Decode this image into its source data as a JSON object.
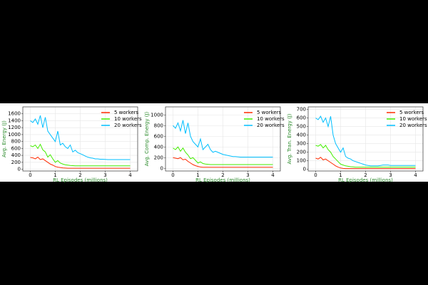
{
  "chart_data": [
    {
      "type": "line",
      "ylabel": "Avg. Energy (J)",
      "xlabel": "RL Episodes (millions)",
      "x": [
        0,
        0.1,
        0.2,
        0.3,
        0.4,
        0.5,
        0.6,
        0.7,
        0.8,
        0.9,
        1.0,
        1.1,
        1.2,
        1.3,
        1.4,
        1.5,
        1.6,
        1.7,
        1.8,
        1.9,
        2.0,
        2.1,
        2.2,
        2.3,
        2.4,
        2.5,
        2.6,
        2.7,
        2.8,
        2.9,
        3.0,
        3.1,
        3.2,
        3.3,
        3.4,
        3.5,
        3.6,
        3.7,
        3.8,
        3.9,
        4.0
      ],
      "series": [
        {
          "name": "5 workers",
          "color": "#ff2a00",
          "values": [
            340,
            330,
            300,
            350,
            280,
            300,
            250,
            200,
            150,
            120,
            80,
            60,
            50,
            40,
            35,
            30,
            30,
            30,
            30,
            30,
            30,
            30,
            30,
            30,
            30,
            30,
            30,
            30,
            30,
            30,
            30,
            30,
            30,
            30,
            30,
            30,
            30,
            30,
            30,
            30,
            30
          ]
        },
        {
          "name": "10 workers",
          "color": "#44ee00",
          "values": [
            680,
            650,
            700,
            600,
            720,
            560,
            500,
            350,
            420,
            300,
            200,
            250,
            180,
            150,
            130,
            120,
            110,
            105,
            100,
            100,
            100,
            100,
            100,
            100,
            100,
            100,
            100,
            100,
            100,
            100,
            100,
            100,
            100,
            100,
            100,
            100,
            100,
            100,
            100,
            100,
            100
          ]
        },
        {
          "name": "20 workers",
          "color": "#00bfff",
          "values": [
            1400,
            1350,
            1450,
            1300,
            1550,
            1200,
            1500,
            1100,
            1000,
            900,
            800,
            1100,
            700,
            750,
            650,
            600,
            700,
            500,
            550,
            480,
            450,
            420,
            380,
            350,
            330,
            320,
            300,
            300,
            290,
            290,
            285,
            280,
            280,
            280,
            280,
            278,
            278,
            280,
            278,
            280,
            280
          ]
        }
      ],
      "xlim": [
        -0.3,
        4.3
      ],
      "xticks": [
        0,
        1,
        2,
        3,
        4
      ],
      "ylim": [
        -50,
        1800
      ],
      "yticks": [
        0,
        200,
        400,
        600,
        800,
        1000,
        1200,
        1400,
        1600
      ],
      "grid": true
    },
    {
      "type": "line",
      "ylabel": "Avg. Comp. Energy (J)",
      "xlabel": "RL Episodes (millions)",
      "x": [
        0,
        0.1,
        0.2,
        0.3,
        0.4,
        0.5,
        0.6,
        0.7,
        0.8,
        0.9,
        1.0,
        1.1,
        1.2,
        1.3,
        1.4,
        1.5,
        1.6,
        1.7,
        1.8,
        1.9,
        2.0,
        2.1,
        2.2,
        2.3,
        2.4,
        2.5,
        2.6,
        2.7,
        2.8,
        2.9,
        3.0,
        3.1,
        3.2,
        3.3,
        3.4,
        3.5,
        3.6,
        3.7,
        3.8,
        3.9,
        4.0
      ],
      "series": [
        {
          "name": "5 workers",
          "color": "#ff2a00",
          "values": [
            200,
            190,
            180,
            200,
            160,
            170,
            130,
            100,
            70,
            50,
            35,
            25,
            20,
            20,
            20,
            20,
            20,
            20,
            20,
            20,
            20,
            20,
            20,
            20,
            20,
            20,
            20,
            20,
            20,
            20,
            20,
            20,
            20,
            20,
            20,
            20,
            20,
            20,
            20,
            20,
            20
          ]
        },
        {
          "name": "10 workers",
          "color": "#44ee00",
          "values": [
            380,
            350,
            400,
            320,
            380,
            300,
            250,
            180,
            200,
            150,
            100,
            120,
            90,
            80,
            75,
            70,
            70,
            70,
            70,
            70,
            70,
            70,
            70,
            70,
            70,
            70,
            70,
            70,
            70,
            70,
            70,
            70,
            70,
            70,
            70,
            70,
            70,
            70,
            70,
            70,
            70
          ]
        },
        {
          "name": "20 workers",
          "color": "#00bfff",
          "values": [
            800,
            750,
            850,
            700,
            900,
            650,
            850,
            600,
            500,
            450,
            400,
            550,
            350,
            400,
            450,
            350,
            300,
            320,
            300,
            280,
            260,
            250,
            240,
            230,
            220,
            220,
            215,
            210,
            210,
            210,
            210,
            210,
            210,
            210,
            210,
            210,
            210,
            210,
            210,
            210,
            210
          ]
        }
      ],
      "xlim": [
        -0.3,
        4.3
      ],
      "xticks": [
        0,
        1,
        2,
        3,
        4
      ],
      "ylim": [
        -50,
        1150
      ],
      "yticks": [
        0,
        200,
        400,
        600,
        800,
        1000
      ],
      "grid": true
    },
    {
      "type": "line",
      "ylabel": "Avg. Tran. Energy (J)",
      "xlabel": "RL Episodes (millions)",
      "x": [
        0,
        0.1,
        0.2,
        0.3,
        0.4,
        0.5,
        0.6,
        0.7,
        0.8,
        0.9,
        1.0,
        1.1,
        1.2,
        1.3,
        1.4,
        1.5,
        1.6,
        1.7,
        1.8,
        1.9,
        2.0,
        2.1,
        2.2,
        2.3,
        2.4,
        2.5,
        2.6,
        2.7,
        2.8,
        2.9,
        3.0,
        3.1,
        3.2,
        3.3,
        3.4,
        3.5,
        3.6,
        3.7,
        3.8,
        3.9,
        4.0
      ],
      "series": [
        {
          "name": "5 workers",
          "color": "#ff2a00",
          "values": [
            130,
            120,
            140,
            110,
            120,
            100,
            80,
            60,
            40,
            25,
            15,
            10,
            8,
            8,
            8,
            8,
            8,
            8,
            8,
            8,
            8,
            8,
            8,
            8,
            8,
            8,
            8,
            8,
            8,
            8,
            8,
            8,
            8,
            8,
            8,
            8,
            8,
            8,
            8,
            8,
            8
          ]
        },
        {
          "name": "10 workers",
          "color": "#44ee00",
          "values": [
            280,
            270,
            290,
            250,
            280,
            230,
            200,
            150,
            120,
            90,
            60,
            50,
            40,
            35,
            30,
            28,
            25,
            25,
            25,
            25,
            25,
            25,
            25,
            25,
            25,
            25,
            25,
            25,
            25,
            25,
            25,
            25,
            25,
            25,
            25,
            25,
            25,
            25,
            25,
            25,
            25
          ]
        },
        {
          "name": "20 workers",
          "color": "#00bfff",
          "values": [
            600,
            580,
            620,
            550,
            600,
            500,
            620,
            400,
            300,
            250,
            200,
            250,
            150,
            130,
            120,
            100,
            90,
            80,
            70,
            60,
            50,
            45,
            40,
            40,
            40,
            40,
            45,
            50,
            50,
            50,
            45,
            45,
            45,
            45,
            45,
            45,
            45,
            45,
            45,
            45,
            45
          ]
        }
      ],
      "xlim": [
        -0.3,
        4.3
      ],
      "xticks": [
        0,
        1,
        2,
        3,
        4
      ],
      "ylim": [
        -20,
        730
      ],
      "yticks": [
        0,
        100,
        200,
        300,
        400,
        500,
        600,
        700
      ],
      "grid": true
    }
  ]
}
